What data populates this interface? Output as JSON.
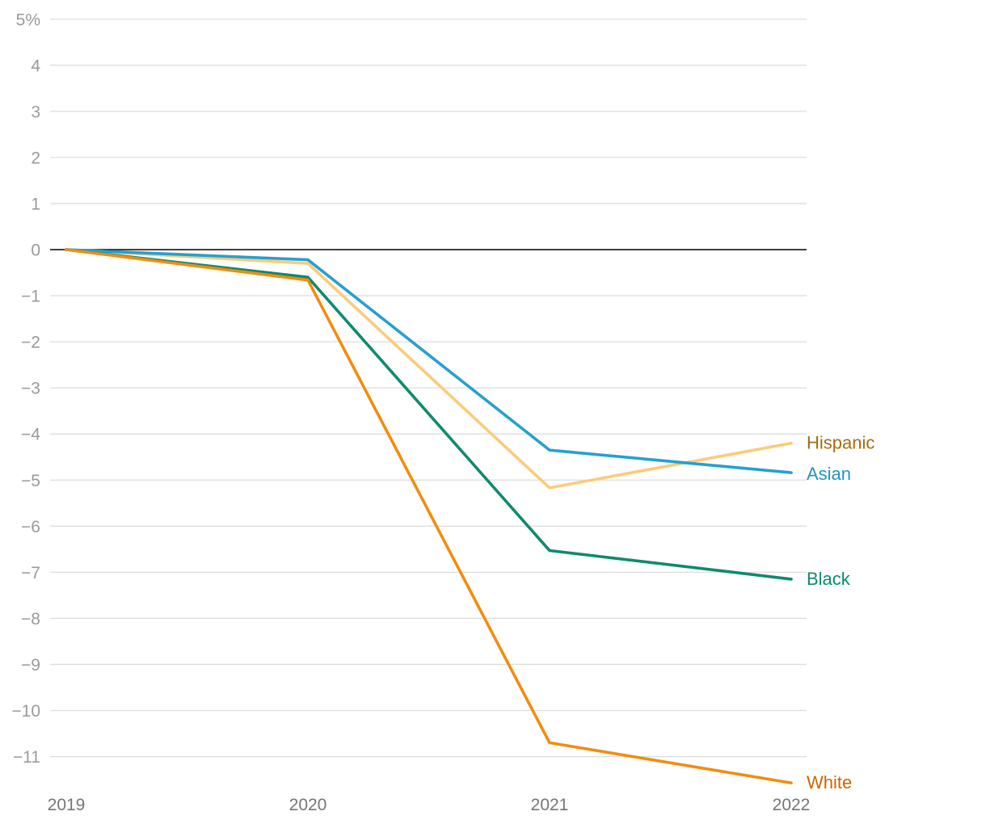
{
  "chart_data": {
    "type": "line",
    "title": "",
    "xlabel": "",
    "ylabel": "",
    "x": [
      "2019",
      "2020",
      "2021",
      "2022"
    ],
    "ylim": [
      -11.5,
      5
    ],
    "y_ticks": [
      {
        "value": 5,
        "label": "5%"
      },
      {
        "value": 4,
        "label": "4"
      },
      {
        "value": 3,
        "label": "3"
      },
      {
        "value": 2,
        "label": "2"
      },
      {
        "value": 1,
        "label": "1"
      },
      {
        "value": 0,
        "label": "0"
      },
      {
        "value": -1,
        "label": "−1"
      },
      {
        "value": -2,
        "label": "−2"
      },
      {
        "value": -3,
        "label": "−3"
      },
      {
        "value": -4,
        "label": "−4"
      },
      {
        "value": -5,
        "label": "−5"
      },
      {
        "value": -6,
        "label": "−6"
      },
      {
        "value": -7,
        "label": "−7"
      },
      {
        "value": -8,
        "label": "−8"
      },
      {
        "value": -9,
        "label": "−9"
      },
      {
        "value": -10,
        "label": "−10"
      },
      {
        "value": -11,
        "label": "−11"
      }
    ],
    "series": [
      {
        "name": "Hispanic",
        "color": "#fbcb7a",
        "label_color": "#a56c10",
        "values": [
          0,
          -0.3,
          -5.17,
          -4.2
        ]
      },
      {
        "name": "Asian",
        "color": "#26a0cf",
        "label_color": "#1f94c2",
        "values": [
          0,
          -0.22,
          -4.35,
          -4.84
        ]
      },
      {
        "name": "Black",
        "color": "#0f8a6d",
        "label_color": "#0f8a6d",
        "values": [
          0,
          -0.6,
          -6.53,
          -7.15
        ]
      },
      {
        "name": "White",
        "color": "#f28c0f",
        "label_color": "#cc6600",
        "values": [
          0,
          -0.66,
          -10.7,
          -11.57
        ]
      }
    ],
    "grid": true,
    "legend": "direct labels at line ends (right)"
  }
}
